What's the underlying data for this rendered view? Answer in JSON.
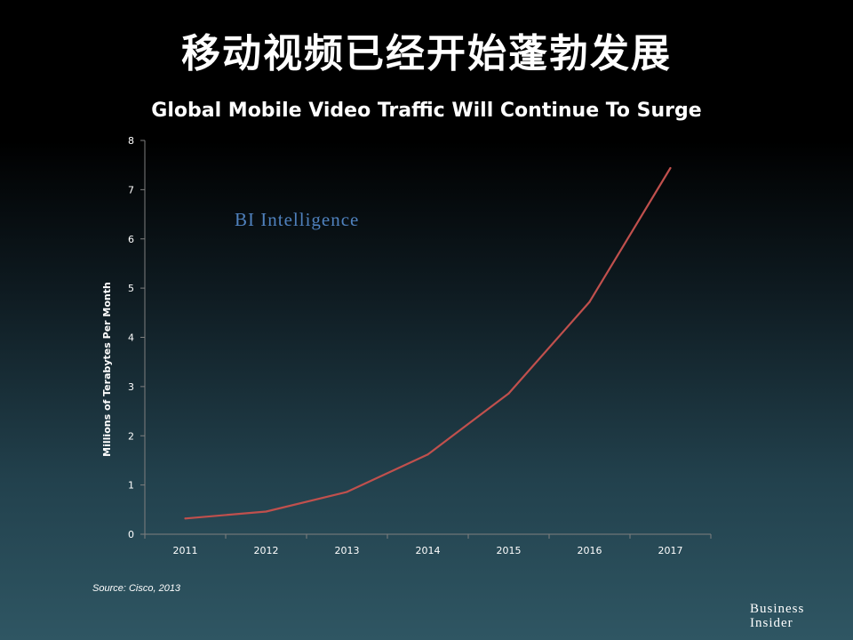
{
  "slide": {
    "title": "移动视频已经开始蓬勃发展",
    "source": "Source: Cisco, 2013",
    "logo_line1": "Business",
    "logo_line2": "Insider"
  },
  "chart_data": {
    "type": "line",
    "title": "Global Mobile Video Traffic Will Continue To Surge",
    "xlabel": "",
    "ylabel": "Millions of Terabytes Per Month",
    "categories": [
      "2011",
      "2012",
      "2013",
      "2014",
      "2015",
      "2016",
      "2017"
    ],
    "series": [
      {
        "values": [
          0.32,
          0.46,
          0.86,
          1.62,
          2.86,
          4.72,
          7.44
        ]
      }
    ],
    "ylim": [
      0,
      8
    ],
    "yticks": [
      "0",
      "1",
      "2",
      "3",
      "4",
      "5",
      "6",
      "7",
      "8"
    ],
    "grid": false,
    "watermark": "BI Intelligence",
    "colors": {
      "line": "#c0504d",
      "axis": "#7f7f7f",
      "text": "#ffffff",
      "watermark": "#4f81bd"
    }
  }
}
